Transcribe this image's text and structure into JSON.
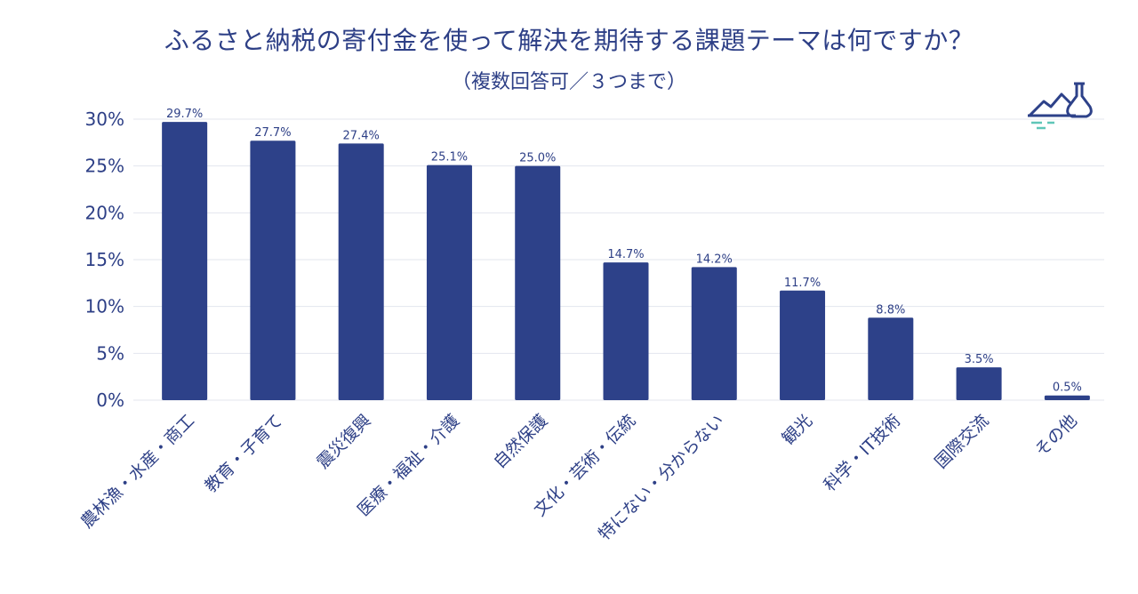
{
  "chart_data": {
    "type": "bar",
    "title": "ふるさと納税の寄付金を使って解決を期待する課題テーマは何ですか？",
    "subtitle": "（複数回答可／３つまで）",
    "categories": [
      "農林漁・水産・商工",
      "教育・子育て",
      "震災復興",
      "医療・福祉・介護",
      "自然保護",
      "文化・芸術・伝統",
      "特にない・分からない",
      "観光",
      "科学・IT技術",
      "国際交流",
      "その他"
    ],
    "values": [
      29.7,
      27.7,
      27.4,
      25.1,
      25.0,
      14.7,
      14.2,
      11.7,
      8.8,
      3.5,
      0.5
    ],
    "data_labels": [
      "29.7%",
      "27.7%",
      "27.4%",
      "25.1%",
      "25.0%",
      "14.7%",
      "14.2%",
      "11.7%",
      "8.8%",
      "3.5%",
      "0.5%"
    ],
    "y_ticks": [
      0,
      5,
      10,
      15,
      20,
      25,
      30
    ],
    "y_tick_labels": [
      "0%",
      "5%",
      "10%",
      "15%",
      "20%",
      "25%",
      "30%"
    ],
    "ylim": [
      0,
      30
    ],
    "xlabel": "",
    "ylabel": "",
    "grid": true,
    "legend": "none",
    "colors": {
      "bar": "#2d4189",
      "text": "#2d3f86",
      "grid": "#e3e6ee",
      "logo": "#2d4189",
      "logo_accent": "#5fc6b8"
    }
  },
  "logo": {
    "icon": "mountain-flask-icon"
  }
}
